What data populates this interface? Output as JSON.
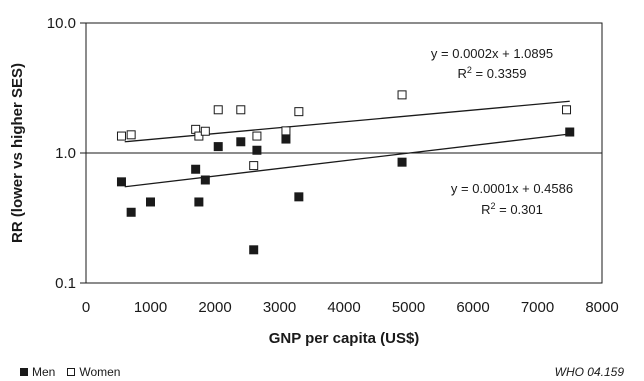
{
  "chart_data": {
    "type": "scatter",
    "xlabel": "GNP per capita (US$)",
    "ylabel": "RR (lower vs higher SES)",
    "xlim": [
      0,
      8000
    ],
    "ylim": [
      0.1,
      10.0
    ],
    "yscale": "log",
    "x_ticks": [
      "0",
      "1000",
      "2000",
      "3000",
      "4000",
      "5000",
      "6000",
      "7000",
      "8000"
    ],
    "y_ticks": [
      "0.1",
      "1.0",
      "10.0"
    ],
    "reference_line_y": 1.0,
    "series": [
      {
        "name": "Men",
        "marker": "filled-square",
        "color": "#1a1a1a",
        "points": [
          {
            "x": 550,
            "y": 0.6
          },
          {
            "x": 700,
            "y": 0.35
          },
          {
            "x": 1000,
            "y": 0.42
          },
          {
            "x": 1700,
            "y": 0.75
          },
          {
            "x": 1750,
            "y": 0.42
          },
          {
            "x": 1850,
            "y": 0.62
          },
          {
            "x": 2050,
            "y": 1.12
          },
          {
            "x": 2400,
            "y": 1.22
          },
          {
            "x": 2600,
            "y": 0.18
          },
          {
            "x": 2650,
            "y": 1.05
          },
          {
            "x": 3100,
            "y": 1.28
          },
          {
            "x": 3300,
            "y": 0.46
          },
          {
            "x": 4900,
            "y": 0.85
          },
          {
            "x": 7500,
            "y": 1.45
          }
        ],
        "trendline": {
          "x": [
            600,
            7500
          ],
          "y": [
            0.55,
            1.4
          ]
        },
        "equation": "y = 0.0001x + 0.4586",
        "r2": "R",
        "r2_exp": "2",
        "r2_value": " = 0.301"
      },
      {
        "name": "Women",
        "marker": "open-square",
        "color": "#1a1a1a",
        "points": [
          {
            "x": 550,
            "y": 1.35
          },
          {
            "x": 700,
            "y": 1.38
          },
          {
            "x": 1700,
            "y": 1.52
          },
          {
            "x": 1750,
            "y": 1.35
          },
          {
            "x": 1850,
            "y": 1.47
          },
          {
            "x": 2050,
            "y": 2.15
          },
          {
            "x": 2400,
            "y": 2.15
          },
          {
            "x": 2600,
            "y": 0.8
          },
          {
            "x": 2650,
            "y": 1.35
          },
          {
            "x": 3100,
            "y": 1.48
          },
          {
            "x": 3300,
            "y": 2.08
          },
          {
            "x": 4900,
            "y": 2.8
          },
          {
            "x": 7450,
            "y": 2.15
          }
        ],
        "trendline": {
          "x": [
            600,
            7500
          ],
          "y": [
            1.22,
            2.5
          ]
        },
        "equation": "y = 0.0002x + 1.0895",
        "r2": "R",
        "r2_exp": "2",
        "r2_value": " = 0.3359"
      }
    ],
    "grid": false,
    "legend_position": "bottom-left"
  },
  "credit": "WHO 04.159"
}
